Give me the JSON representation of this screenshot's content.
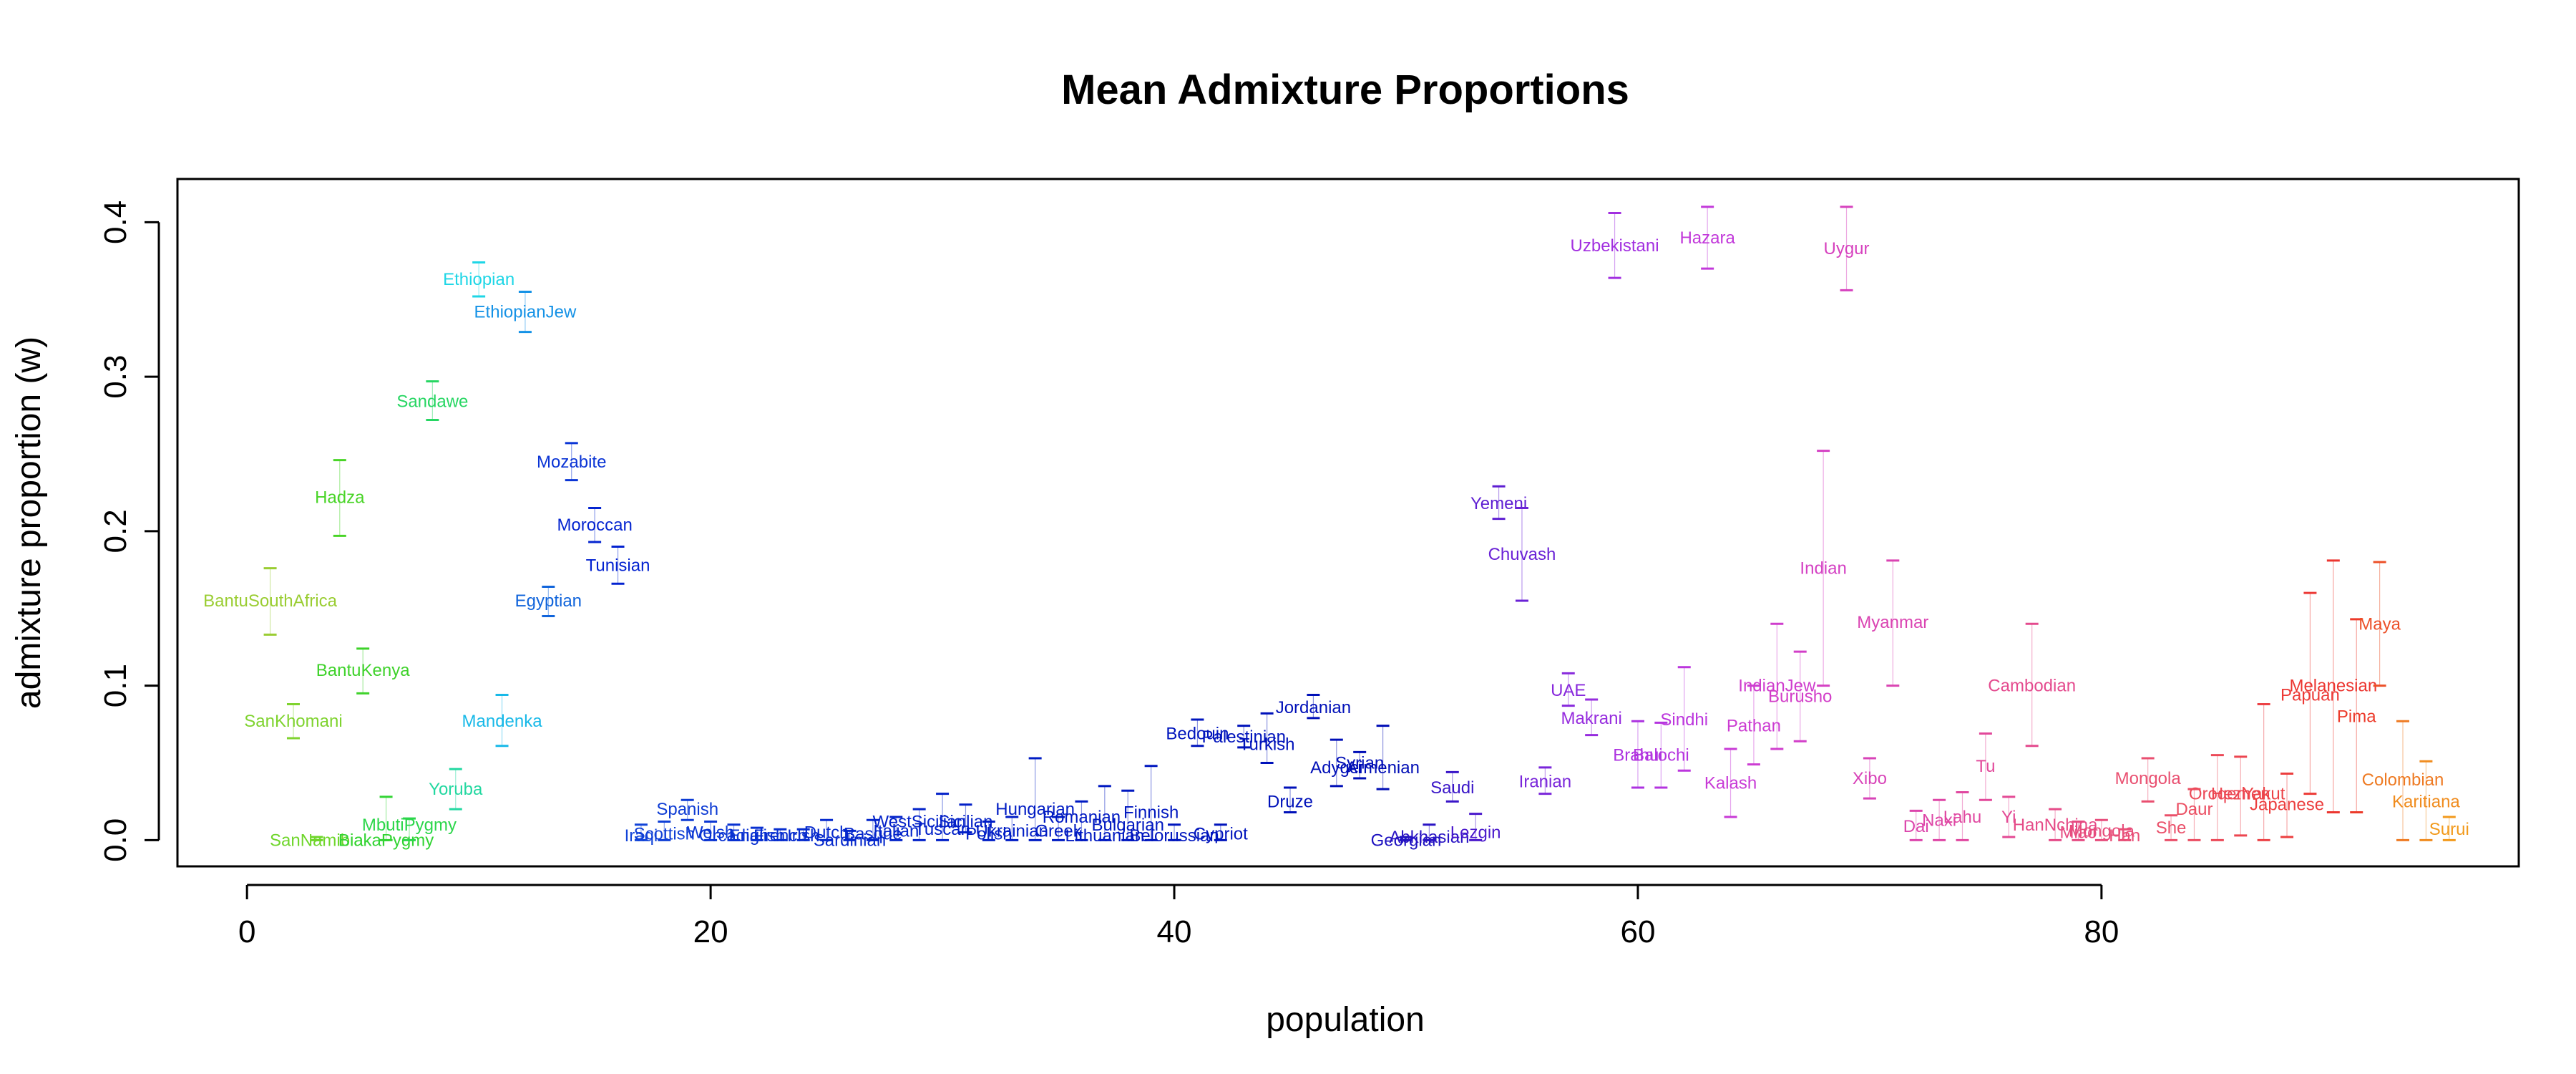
{
  "chart_data": {
    "type": "scatter",
    "title": "Mean Admixture Proportions",
    "xlabel": "population",
    "ylabel": "admixture proportion (w)",
    "xlim": [
      -3,
      98
    ],
    "ylim": [
      -0.017,
      0.428
    ],
    "x_ticks": [
      0,
      20,
      40,
      60,
      80
    ],
    "y_ticks": [
      0.0,
      0.1,
      0.2,
      0.3,
      0.4
    ],
    "y_tick_labels": [
      "0.0",
      "0.1",
      "0.2",
      "0.3",
      "0.4"
    ],
    "grid": false,
    "populations": [
      {
        "x": 1,
        "name": "BantuSouthAfrica",
        "mean": 0.155,
        "lo": 0.133,
        "hi": 0.176,
        "color": "#9ACD32"
      },
      {
        "x": 2,
        "name": "SanKhomani",
        "mean": 0.077,
        "lo": 0.066,
        "hi": 0.088,
        "color": "#7FD32F"
      },
      {
        "x": 3,
        "name": "SanNamibia",
        "mean": 0.0,
        "lo": 0.0,
        "hi": 0.002,
        "color": "#6FD62B"
      },
      {
        "x": 4,
        "name": "Hadza",
        "mean": 0.222,
        "lo": 0.197,
        "hi": 0.246,
        "color": "#48D426"
      },
      {
        "x": 5,
        "name": "BantuKenya",
        "mean": 0.11,
        "lo": 0.095,
        "hi": 0.124,
        "color": "#3ED22A"
      },
      {
        "x": 6,
        "name": "BiakaPygmy",
        "mean": 0.0,
        "lo": 0.0,
        "hi": 0.028,
        "color": "#32D433"
      },
      {
        "x": 7,
        "name": "MbutiPygmy",
        "mean": 0.01,
        "lo": 0.0,
        "hi": 0.014,
        "color": "#2BD64A"
      },
      {
        "x": 8,
        "name": "Sandawe",
        "mean": 0.284,
        "lo": 0.272,
        "hi": 0.297,
        "color": "#26D662"
      },
      {
        "x": 9,
        "name": "Yoruba",
        "mean": 0.033,
        "lo": 0.02,
        "hi": 0.046,
        "color": "#22D8A0"
      },
      {
        "x": 10,
        "name": "Ethiopian",
        "mean": 0.363,
        "lo": 0.352,
        "hi": 0.374,
        "color": "#1ED6E6"
      },
      {
        "x": 11,
        "name": "Mandenka",
        "mean": 0.077,
        "lo": 0.061,
        "hi": 0.094,
        "color": "#18B9E8"
      },
      {
        "x": 12,
        "name": "EthiopianJew",
        "mean": 0.342,
        "lo": 0.329,
        "hi": 0.355,
        "color": "#1592E6"
      },
      {
        "x": 13,
        "name": "Egyptian",
        "mean": 0.155,
        "lo": 0.145,
        "hi": 0.164,
        "color": "#1064DB"
      },
      {
        "x": 14,
        "name": "Mozabite",
        "mean": 0.245,
        "lo": 0.233,
        "hi": 0.257,
        "color": "#0A34D5"
      },
      {
        "x": 15,
        "name": "Moroccan",
        "mean": 0.204,
        "lo": 0.193,
        "hi": 0.215,
        "color": "#0525D0"
      },
      {
        "x": 16,
        "name": "Tunisian",
        "mean": 0.178,
        "lo": 0.166,
        "hi": 0.19,
        "color": "#0322D0"
      },
      {
        "x": 17,
        "name": "Iraqi",
        "mean": 0.003,
        "lo": 0.0,
        "hi": 0.01,
        "color": "#1244D8"
      },
      {
        "x": 18,
        "name": "Scottish",
        "mean": 0.004,
        "lo": 0.0,
        "hi": 0.012,
        "color": "#0F3FD6"
      },
      {
        "x": 19,
        "name": "Spanish",
        "mean": 0.02,
        "lo": 0.013,
        "hi": 0.026,
        "color": "#0E3CD4"
      },
      {
        "x": 20,
        "name": "Welsh",
        "mean": 0.005,
        "lo": 0.0,
        "hi": 0.012,
        "color": "#0B36D3"
      },
      {
        "x": 21,
        "name": "Orcadian",
        "mean": 0.003,
        "lo": 0.0,
        "hi": 0.01,
        "color": "#0A33D2"
      },
      {
        "x": 22,
        "name": "English",
        "mean": 0.003,
        "lo": 0.0,
        "hi": 0.008,
        "color": "#0930D1"
      },
      {
        "x": 23,
        "name": "French",
        "mean": 0.003,
        "lo": 0.0,
        "hi": 0.007,
        "color": "#082ECF"
      },
      {
        "x": 24,
        "name": "Irish",
        "mean": 0.003,
        "lo": 0.0,
        "hi": 0.007,
        "color": "#072CCE"
      },
      {
        "x": 25,
        "name": "Dutch",
        "mean": 0.005,
        "lo": 0.0,
        "hi": 0.013,
        "color": "#062ACD"
      },
      {
        "x": 26,
        "name": "Sardinian",
        "mean": 0.0,
        "lo": 0.0,
        "hi": 0.006,
        "color": "#0528CC"
      },
      {
        "x": 27,
        "name": "Basque",
        "mean": 0.004,
        "lo": 0.0,
        "hi": 0.013,
        "color": "#0426CB"
      },
      {
        "x": 28,
        "name": "Italian",
        "mean": 0.006,
        "lo": 0.0,
        "hi": 0.015,
        "color": "#0424CA"
      },
      {
        "x": 29,
        "name": "WestSicilian",
        "mean": 0.012,
        "lo": 0.0,
        "hi": 0.02,
        "color": "#0322C9"
      },
      {
        "x": 30,
        "name": "Tuscan",
        "mean": 0.007,
        "lo": 0.0,
        "hi": 0.03,
        "color": "#0220C8"
      },
      {
        "x": 31,
        "name": "Sicilian",
        "mean": 0.012,
        "lo": 0.005,
        "hi": 0.023,
        "color": "#021FC7"
      },
      {
        "x": 32,
        "name": "Polish",
        "mean": 0.004,
        "lo": 0.0,
        "hi": 0.012,
        "color": "#011EC6"
      },
      {
        "x": 33,
        "name": "Ukrainian",
        "mean": 0.006,
        "lo": 0.0,
        "hi": 0.015,
        "color": "#011DC5"
      },
      {
        "x": 34,
        "name": "Hungarian",
        "mean": 0.02,
        "lo": 0.0,
        "hi": 0.053,
        "color": "#001CC4"
      },
      {
        "x": 35,
        "name": "Greek",
        "mean": 0.006,
        "lo": 0.0,
        "hi": 0.015,
        "color": "#001BC3"
      },
      {
        "x": 36,
        "name": "Romanian",
        "mean": 0.015,
        "lo": 0.0,
        "hi": 0.025,
        "color": "#001AC2"
      },
      {
        "x": 37,
        "name": "Lithuanian",
        "mean": 0.003,
        "lo": 0.0,
        "hi": 0.035,
        "color": "#0019C1"
      },
      {
        "x": 38,
        "name": "Bulgarian",
        "mean": 0.01,
        "lo": 0.0,
        "hi": 0.032,
        "color": "#0018C0"
      },
      {
        "x": 39,
        "name": "Finnish",
        "mean": 0.018,
        "lo": 0.0,
        "hi": 0.048,
        "color": "#0017BF"
      },
      {
        "x": 40,
        "name": "Belorussian",
        "mean": 0.003,
        "lo": 0.0,
        "hi": 0.01,
        "color": "#0016BE"
      },
      {
        "x": 41,
        "name": "Bedouin",
        "mean": 0.069,
        "lo": 0.061,
        "hi": 0.078,
        "color": "#0015BD"
      },
      {
        "x": 42,
        "name": "Cypriot",
        "mean": 0.004,
        "lo": 0.0,
        "hi": 0.01,
        "color": "#0014BC"
      },
      {
        "x": 43,
        "name": "Palestinian",
        "mean": 0.067,
        "lo": 0.06,
        "hi": 0.074,
        "color": "#0013BB"
      },
      {
        "x": 44,
        "name": "Turkish",
        "mean": 0.062,
        "lo": 0.05,
        "hi": 0.082,
        "color": "#0012BA"
      },
      {
        "x": 45,
        "name": "Druze",
        "mean": 0.025,
        "lo": 0.018,
        "hi": 0.034,
        "color": "#0011B9"
      },
      {
        "x": 46,
        "name": "Jordanian",
        "mean": 0.086,
        "lo": 0.079,
        "hi": 0.094,
        "color": "#0010B8"
      },
      {
        "x": 47,
        "name": "Adygei",
        "mean": 0.047,
        "lo": 0.035,
        "hi": 0.065,
        "color": "#000FB7"
      },
      {
        "x": 48,
        "name": "Syrian",
        "mean": 0.05,
        "lo": 0.04,
        "hi": 0.057,
        "color": "#000EB6"
      },
      {
        "x": 49,
        "name": "Armenian",
        "mean": 0.047,
        "lo": 0.033,
        "hi": 0.074,
        "color": "#000DB5"
      },
      {
        "x": 50,
        "name": "Georgian",
        "mean": 0.0,
        "lo": 0.0,
        "hi": 0.002,
        "color": "#1D12C0"
      },
      {
        "x": 51,
        "name": "Abkhasian",
        "mean": 0.002,
        "lo": 0.0,
        "hi": 0.01,
        "color": "#2A14C4"
      },
      {
        "x": 52,
        "name": "Saudi",
        "mean": 0.034,
        "lo": 0.025,
        "hi": 0.044,
        "color": "#3A16C8"
      },
      {
        "x": 53,
        "name": "Lezgin",
        "mean": 0.005,
        "lo": 0.0,
        "hi": 0.017,
        "color": "#4A18CC"
      },
      {
        "x": 54,
        "name": "Yemeni",
        "mean": 0.218,
        "lo": 0.208,
        "hi": 0.229,
        "color": "#5E1ED2"
      },
      {
        "x": 55,
        "name": "Chuvash",
        "mean": 0.185,
        "lo": 0.155,
        "hi": 0.215,
        "color": "#6A22D6"
      },
      {
        "x": 56,
        "name": "Iranian",
        "mean": 0.038,
        "lo": 0.03,
        "hi": 0.047,
        "color": "#7A26DA"
      },
      {
        "x": 57,
        "name": "UAE",
        "mean": 0.097,
        "lo": 0.087,
        "hi": 0.108,
        "color": "#8829DC"
      },
      {
        "x": 58,
        "name": "Makrani",
        "mean": 0.079,
        "lo": 0.068,
        "hi": 0.091,
        "color": "#962CDE"
      },
      {
        "x": 59,
        "name": "Uzbekistani",
        "mean": 0.385,
        "lo": 0.364,
        "hi": 0.406,
        "color": "#A22FE0"
      },
      {
        "x": 60,
        "name": "Brahui",
        "mean": 0.055,
        "lo": 0.034,
        "hi": 0.077,
        "color": "#AC32E0"
      },
      {
        "x": 61,
        "name": "Balochi",
        "mean": 0.055,
        "lo": 0.034,
        "hi": 0.076,
        "color": "#B434DF"
      },
      {
        "x": 62,
        "name": "Sindhi",
        "mean": 0.078,
        "lo": 0.045,
        "hi": 0.112,
        "color": "#BC36DD"
      },
      {
        "x": 63,
        "name": "Hazara",
        "mean": 0.39,
        "lo": 0.37,
        "hi": 0.41,
        "color": "#C238DA"
      },
      {
        "x": 64,
        "name": "Kalash",
        "mean": 0.037,
        "lo": 0.015,
        "hi": 0.059,
        "color": "#C83AD6"
      },
      {
        "x": 65,
        "name": "Pathan",
        "mean": 0.074,
        "lo": 0.049,
        "hi": 0.1,
        "color": "#CC3CD2"
      },
      {
        "x": 66,
        "name": "IndianJew",
        "mean": 0.1,
        "lo": 0.059,
        "hi": 0.14,
        "color": "#CF3DCD"
      },
      {
        "x": 67,
        "name": "Burusho",
        "mean": 0.093,
        "lo": 0.064,
        "hi": 0.122,
        "color": "#D23EC8"
      },
      {
        "x": 68,
        "name": "Indian",
        "mean": 0.176,
        "lo": 0.1,
        "hi": 0.252,
        "color": "#D440C3"
      },
      {
        "x": 69,
        "name": "Uygur",
        "mean": 0.383,
        "lo": 0.356,
        "hi": 0.41,
        "color": "#D641BE"
      },
      {
        "x": 70,
        "name": "Xibo",
        "mean": 0.04,
        "lo": 0.027,
        "hi": 0.053,
        "color": "#D843B8"
      },
      {
        "x": 71,
        "name": "Myanmar",
        "mean": 0.141,
        "lo": 0.1,
        "hi": 0.181,
        "color": "#DA44B2"
      },
      {
        "x": 72,
        "name": "Dai",
        "mean": 0.009,
        "lo": 0.0,
        "hi": 0.019,
        "color": "#DC45AC"
      },
      {
        "x": 73,
        "name": "Naxi",
        "mean": 0.013,
        "lo": 0.0,
        "hi": 0.026,
        "color": "#DE46A6"
      },
      {
        "x": 74,
        "name": "Lahu",
        "mean": 0.015,
        "lo": 0.0,
        "hi": 0.031,
        "color": "#E047A0"
      },
      {
        "x": 75,
        "name": "Tu",
        "mean": 0.048,
        "lo": 0.026,
        "hi": 0.069,
        "color": "#E2489A"
      },
      {
        "x": 76,
        "name": "Yi",
        "mean": 0.015,
        "lo": 0.002,
        "hi": 0.028,
        "color": "#E34994"
      },
      {
        "x": 77,
        "name": "Cambodian",
        "mean": 0.1,
        "lo": 0.061,
        "hi": 0.14,
        "color": "#E44A8E"
      },
      {
        "x": 78,
        "name": "HanNchina",
        "mean": 0.01,
        "lo": 0.0,
        "hi": 0.02,
        "color": "#E54B88"
      },
      {
        "x": 79,
        "name": "Miao",
        "mean": 0.005,
        "lo": 0.0,
        "hi": 0.012,
        "color": "#E64C82"
      },
      {
        "x": 80,
        "name": "Mongola",
        "mean": 0.006,
        "lo": 0.0,
        "hi": 0.013,
        "color": "#E74D7C"
      },
      {
        "x": 81,
        "name": "Han",
        "mean": 0.003,
        "lo": 0.0,
        "hi": 0.007,
        "color": "#E84E76"
      },
      {
        "x": 82,
        "name": "Mongola",
        "mean": 0.04,
        "lo": 0.025,
        "hi": 0.053,
        "color": "#E94F70"
      },
      {
        "x": 83,
        "name": "She",
        "mean": 0.008,
        "lo": 0.0,
        "hi": 0.016,
        "color": "#EA506A"
      },
      {
        "x": 84,
        "name": "Daur",
        "mean": 0.02,
        "lo": 0.0,
        "hi": 0.033,
        "color": "#EB4E62"
      },
      {
        "x": 85,
        "name": "Oroqen",
        "mean": 0.03,
        "lo": 0.0,
        "hi": 0.055,
        "color": "#EC4A58"
      },
      {
        "x": 86,
        "name": "Hezhen",
        "mean": 0.03,
        "lo": 0.003,
        "hi": 0.054,
        "color": "#EC4650"
      },
      {
        "x": 87,
        "name": "Yakut",
        "mean": 0.03,
        "lo": 0.0,
        "hi": 0.088,
        "color": "#EC4246"
      },
      {
        "x": 88,
        "name": "Japanese",
        "mean": 0.023,
        "lo": 0.002,
        "hi": 0.043,
        "color": "#EC3E3E"
      },
      {
        "x": 89,
        "name": "Papuan",
        "mean": 0.094,
        "lo": 0.03,
        "hi": 0.16,
        "color": "#EC3A36"
      },
      {
        "x": 90,
        "name": "Melanesian",
        "mean": 0.1,
        "lo": 0.018,
        "hi": 0.181,
        "color": "#EC3630"
      },
      {
        "x": 91,
        "name": "Pima",
        "mean": 0.08,
        "lo": 0.018,
        "hi": 0.143,
        "color": "#EC3A2A"
      },
      {
        "x": 92,
        "name": "Maya",
        "mean": 0.14,
        "lo": 0.1,
        "hi": 0.18,
        "color": "#EC5028"
      },
      {
        "x": 93,
        "name": "Colombian",
        "mean": 0.039,
        "lo": 0.0,
        "hi": 0.077,
        "color": "#EE7A22"
      },
      {
        "x": 94,
        "name": "Karitiana",
        "mean": 0.025,
        "lo": 0.0,
        "hi": 0.051,
        "color": "#F08C1E"
      },
      {
        "x": 95,
        "name": "Surui",
        "mean": 0.007,
        "lo": 0.0,
        "hi": 0.015,
        "color": "#F29A1C"
      }
    ]
  }
}
